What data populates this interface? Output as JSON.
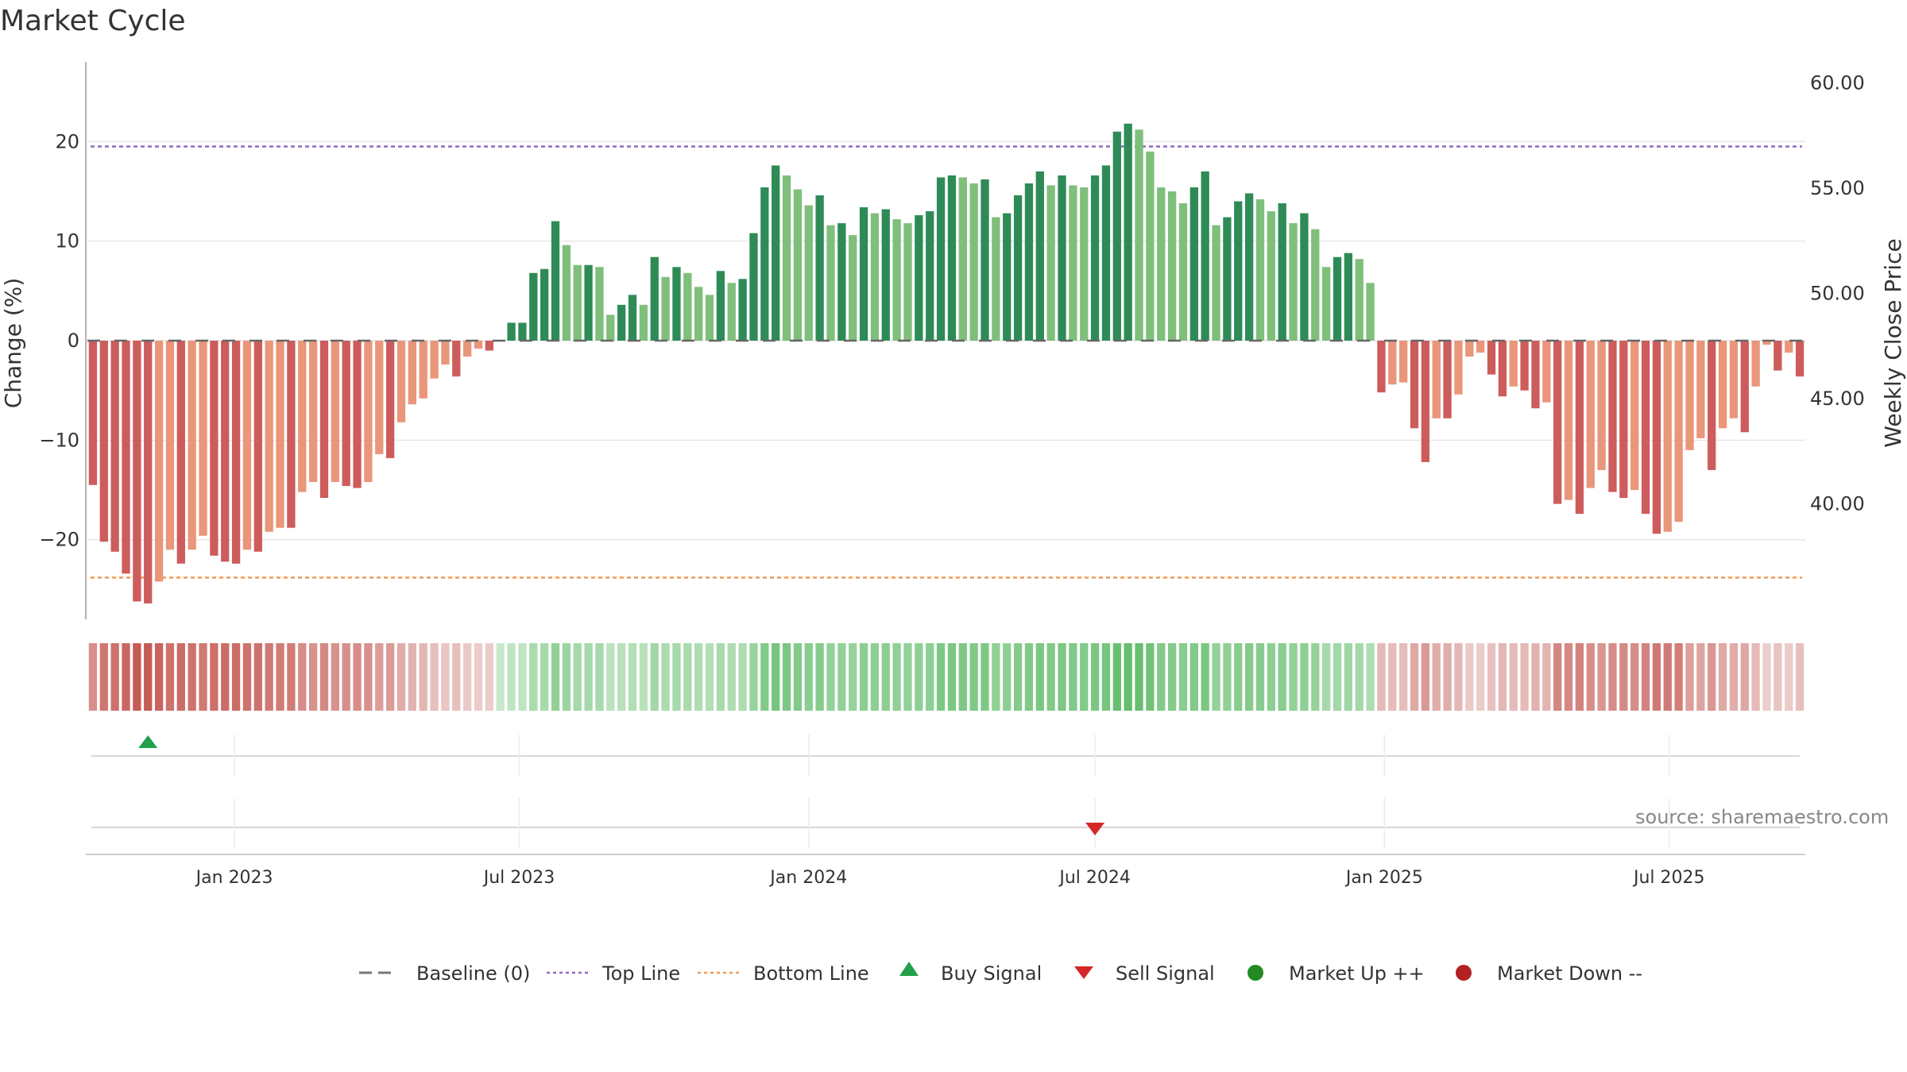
{
  "title": "Market Cycle",
  "source": "source: sharemaestro.com",
  "chart_data": {
    "type": "bar",
    "start_week": "2022-10-03",
    "ylabel_left": "Change (%)",
    "ylabel_right": "Weekly Close Price",
    "ylim": [
      -28,
      28
    ],
    "yticks_left": [
      -20,
      -10,
      0,
      10,
      20
    ],
    "ylim_right": [
      34.5,
      61.0
    ],
    "yticks_right": [
      "40.00",
      "45.00",
      "50.00",
      "55.00",
      "60.00"
    ],
    "x_ticks": [
      {
        "label": "Jan 2023",
        "date": "2023-01-01"
      },
      {
        "label": "Jul 2023",
        "date": "2023-07-01"
      },
      {
        "label": "Jan 2024",
        "date": "2024-01-01"
      },
      {
        "label": "Jul 2024",
        "date": "2024-07-01"
      },
      {
        "label": "Jan 2025",
        "date": "2025-01-01"
      },
      {
        "label": "Jul 2025",
        "date": "2025-07-01"
      }
    ],
    "top_line": 19.5,
    "bottom_line": -23.8,
    "values": [
      -14.5,
      -20.2,
      -21.2,
      -23.4,
      -26.2,
      -26.4,
      -24.2,
      -21.0,
      -22.4,
      -21.0,
      -19.6,
      -21.6,
      -22.2,
      -22.4,
      -21.0,
      -21.2,
      -19.2,
      -18.8,
      -18.8,
      -15.2,
      -14.2,
      -15.8,
      -14.2,
      -14.6,
      -14.8,
      -14.2,
      -11.4,
      -11.8,
      -8.2,
      -6.4,
      -5.8,
      -3.8,
      -2.4,
      -3.6,
      -1.6,
      -0.8,
      -1.0,
      0,
      1.8,
      1.8,
      6.8,
      7.2,
      12.0,
      9.6,
      7.6,
      7.6,
      7.4,
      2.6,
      3.6,
      4.6,
      3.6,
      8.4,
      6.4,
      7.4,
      6.8,
      5.4,
      4.6,
      7.0,
      5.8,
      6.2,
      10.8,
      15.4,
      17.6,
      16.6,
      15.2,
      13.6,
      14.6,
      11.6,
      11.8,
      10.6,
      13.4,
      12.8,
      13.2,
      12.2,
      11.8,
      12.6,
      13.0,
      16.4,
      16.6,
      16.4,
      15.8,
      16.2,
      12.4,
      12.8,
      14.6,
      15.8,
      17.0,
      15.6,
      16.6,
      15.6,
      15.4,
      16.6,
      17.6,
      21.0,
      21.8,
      21.2,
      19.0,
      15.4,
      15.0,
      13.8,
      15.4,
      17.0,
      11.6,
      12.4,
      14.0,
      14.8,
      14.2,
      13.0,
      13.8,
      11.8,
      12.8,
      11.2,
      7.4,
      8.4,
      8.8,
      8.2,
      5.8,
      -5.2,
      -4.4,
      -4.2,
      -8.8,
      -12.2,
      -7.8,
      -7.8,
      -5.4,
      -1.6,
      -1.2,
      -3.4,
      -5.6,
      -4.6,
      -5.0,
      -6.8,
      -6.2,
      -16.4,
      -16.0,
      -17.4,
      -14.8,
      -13.0,
      -15.2,
      -15.8,
      -15.0,
      -17.4,
      -19.4,
      -19.2,
      -18.2,
      -11.0,
      -9.8,
      -13.0,
      -8.8,
      -7.8,
      -9.2,
      -4.6,
      -0.4,
      -3.0,
      -1.2,
      -3.6
    ],
    "series": [
      {
        "name": "Baseline (0)",
        "style": "dash",
        "color": "#777777"
      },
      {
        "name": "Top Line",
        "style": "dotted",
        "color": "#8e6bbf"
      },
      {
        "name": "Bottom Line",
        "style": "dotted",
        "color": "#ef9a56"
      },
      {
        "name": "Buy Signal",
        "marker": "triangle-up",
        "color": "#22a04a",
        "dates": [
          "2022-11-07"
        ]
      },
      {
        "name": "Sell Signal",
        "marker": "triangle-down",
        "color": "#d62728",
        "dates": [
          "2024-07-01"
        ]
      },
      {
        "name": "Market Up ++",
        "marker": "circle",
        "color": "#228b22"
      },
      {
        "name": "Market Down --",
        "marker": "circle",
        "color": "#b22222"
      }
    ],
    "colors": {
      "up_dark": "#2e8b57",
      "up_light": "#7fbf7b",
      "down_dark": "#cd5c5c",
      "down_light": "#e9967a",
      "top_line": "#8e6bbf",
      "bottom_line": "#ef9a56"
    },
    "legend_position": "bottom-center",
    "grid": true
  }
}
